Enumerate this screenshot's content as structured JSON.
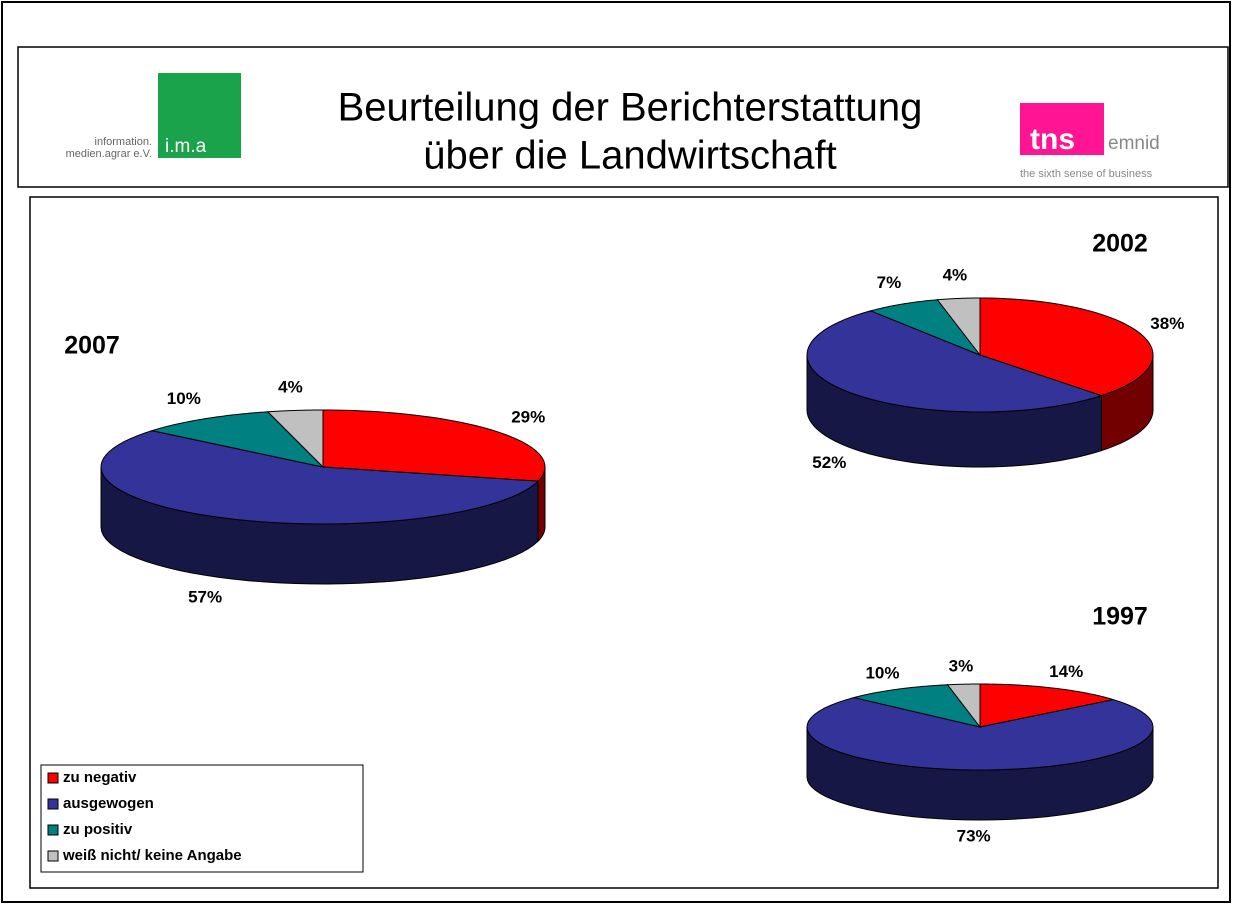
{
  "header": {
    "title_lines": [
      "Beurteilung der Berichterstattung",
      "über die Landwirtschaft"
    ],
    "left_logo": {
      "lines": [
        "information.",
        "medien.agrar e.V."
      ],
      "mark": "i.m.a"
    },
    "right_logo": {
      "mark": "tns",
      "name": "emnid",
      "slogan": "the sixth sense of business"
    }
  },
  "chart_data": [
    {
      "type": "pie",
      "title": "2007",
      "categories": [
        "zu negativ",
        "ausgewogen",
        "zu positiv",
        "weiß nicht/ keine Angabe"
      ],
      "values": [
        29,
        57,
        10,
        4
      ],
      "value_labels": [
        "29%",
        "57%",
        "10%",
        "4%"
      ],
      "colors": [
        "#ff0000",
        "#333399",
        "#008080",
        "#c0c0c0"
      ],
      "legend": "bottom-left"
    },
    {
      "type": "pie",
      "title": "2002",
      "categories": [
        "zu negativ",
        "ausgewogen",
        "zu positiv",
        "weiß nicht/ keine Angabe"
      ],
      "values": [
        38,
        52,
        7,
        4
      ],
      "value_labels": [
        "38%",
        "52%",
        "7%",
        "4%"
      ],
      "colors": [
        "#ff0000",
        "#333399",
        "#008080",
        "#c0c0c0"
      ]
    },
    {
      "type": "pie",
      "title": "1997",
      "categories": [
        "zu negativ",
        "ausgewogen",
        "zu positiv",
        "weiß nicht/ keine Angabe"
      ],
      "values": [
        14,
        73,
        10,
        3
      ],
      "value_labels": [
        "14%",
        "73%",
        "10%",
        "3%"
      ],
      "colors": [
        "#ff0000",
        "#333399",
        "#008080",
        "#c0c0c0"
      ]
    }
  ]
}
